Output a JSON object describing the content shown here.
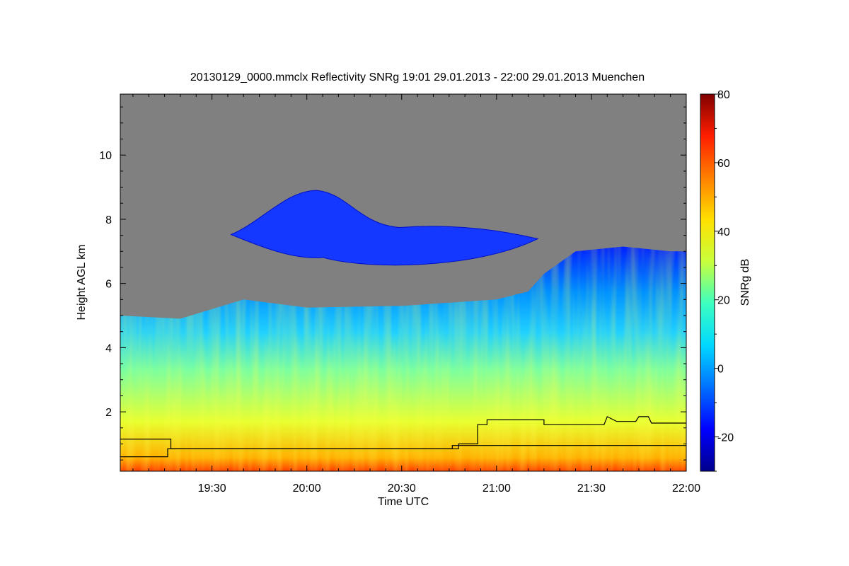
{
  "chart_data": {
    "type": "heatmap",
    "title": "20130129_0000.mmclx Reflectivity SNRg   19:01 29.01.2013 - 22:00 29.01.2013 Muenchen",
    "xlabel": "Time UTC",
    "ylabel": "Height AGL km",
    "colorbar_label": "SNRg dB",
    "xlim": [
      "19:01",
      "22:00"
    ],
    "ylim": [
      0.15,
      11.9
    ],
    "clim": [
      -30,
      80
    ],
    "x_ticks": [
      "19:30",
      "20:00",
      "20:30",
      "21:00",
      "21:30",
      "22:00"
    ],
    "y_ticks": [
      2,
      4,
      6,
      8,
      10
    ],
    "colorbar_ticks": [
      -20,
      0,
      20,
      40,
      60,
      80
    ],
    "colormap": [
      "#00008c",
      "#0000ff",
      "#0070ff",
      "#00d8ff",
      "#3cffc0",
      "#c8ff3c",
      "#ffe000",
      "#ff8000",
      "#ff1e00",
      "#800000"
    ],
    "no_signal_color": "#808080",
    "cloud_top_km": [
      {
        "time": "19:01",
        "km": 5.0
      },
      {
        "time": "19:20",
        "km": 4.9
      },
      {
        "time": "19:40",
        "km": 5.5
      },
      {
        "time": "20:00",
        "km": 5.25
      },
      {
        "time": "20:30",
        "km": 5.3
      },
      {
        "time": "21:00",
        "km": 5.5
      },
      {
        "time": "21:10",
        "km": 5.75
      },
      {
        "time": "21:15",
        "km": 6.3
      },
      {
        "time": "21:25",
        "km": 7.0
      },
      {
        "time": "21:40",
        "km": 7.15
      },
      {
        "time": "21:55",
        "km": 7.0
      },
      {
        "time": "22:00",
        "km": 7.0
      }
    ],
    "upper_layer": {
      "start": "19:36",
      "end": "21:13",
      "base_km": 6.5,
      "top_km": 8.9
    },
    "series": [
      {
        "values": [
          {
            "time": "19:01",
            "km": 1.15
          },
          {
            "time": "19:17",
            "km": 1.15
          },
          {
            "time": "19:17",
            "km": 0.85
          },
          {
            "time": "20:46",
            "km": 0.85
          },
          {
            "time": "20:46",
            "km": 0.95
          },
          {
            "time": "22:00",
            "km": 0.95
          }
        ]
      },
      {
        "values": [
          {
            "time": "19:01",
            "km": 0.6
          },
          {
            "time": "19:16",
            "km": 0.6
          },
          {
            "time": "19:16",
            "km": 0.85
          },
          {
            "time": "20:48",
            "km": 0.85
          },
          {
            "time": "20:48",
            "km": 1.0
          },
          {
            "time": "20:54",
            "km": 1.0
          },
          {
            "time": "20:54",
            "km": 1.6
          },
          {
            "time": "20:57",
            "km": 1.6
          },
          {
            "time": "20:57",
            "km": 1.75
          },
          {
            "time": "21:15",
            "km": 1.75
          },
          {
            "time": "21:15",
            "km": 1.6
          },
          {
            "time": "21:34",
            "km": 1.6
          },
          {
            "time": "21:35",
            "km": 1.85
          },
          {
            "time": "21:38",
            "km": 1.7
          },
          {
            "time": "21:44",
            "km": 1.7
          },
          {
            "time": "21:45",
            "km": 1.85
          },
          {
            "time": "21:48",
            "km": 1.85
          },
          {
            "time": "21:49",
            "km": 1.65
          },
          {
            "time": "22:00",
            "km": 1.65
          }
        ]
      }
    ]
  }
}
